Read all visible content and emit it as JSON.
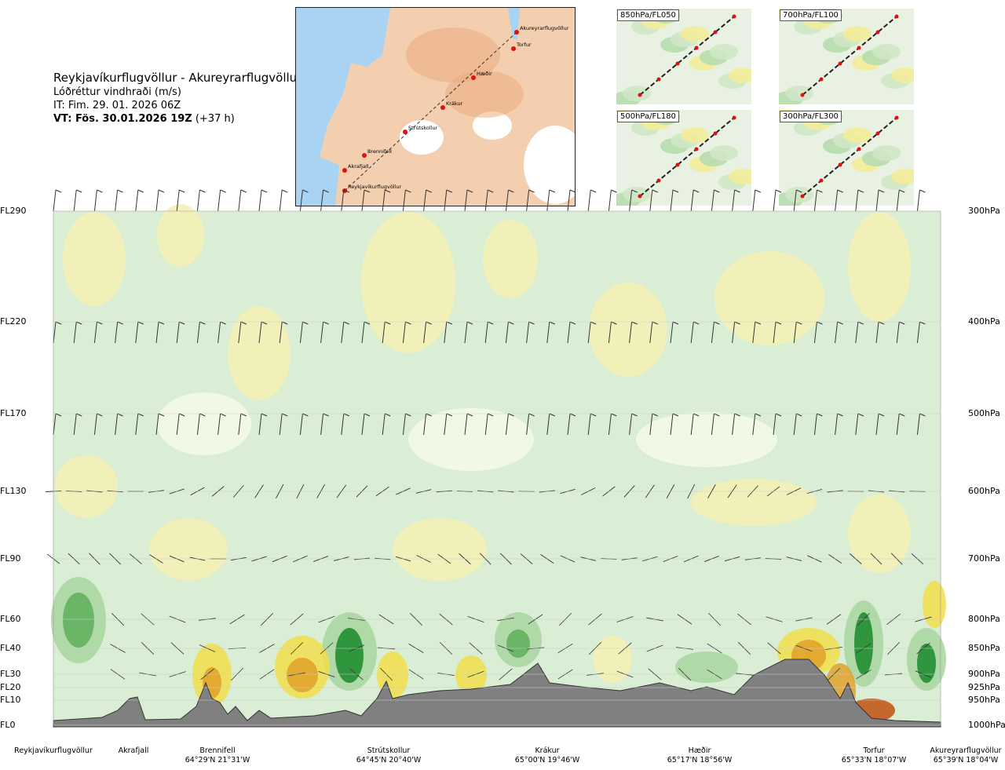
{
  "header": {
    "route": "Reykjavíkurflugvöllur - Akureyrarflugvöllur",
    "parameter": "Lóðréttur vindhraði (m/s)",
    "issue_time": "IT: Fim. 29. 01. 2026 06Z",
    "valid_time": "VT: Fös. 30.01.2026 19Z",
    "lead": "(+37 h)"
  },
  "map": {
    "stations": [
      "Akureyrarflugvöllur",
      "Torfur",
      "Hæðir",
      "Krákur",
      "Strútskollur",
      "Brennifell",
      "Akrafjall",
      "Reykjavíkurflugvöllur"
    ]
  },
  "thumbnails": [
    {
      "label": "850hPa/FL050"
    },
    {
      "label": "700hPa/FL100"
    },
    {
      "label": "500hPa/FL180"
    },
    {
      "label": "300hPa/FL300"
    }
  ],
  "chart_data": {
    "type": "heatmap",
    "title": "Lóðréttur vindhraði (m/s)",
    "y_levels": [
      {
        "fl": "FL290",
        "hpa": "300hPa"
      },
      {
        "fl": "FL220",
        "hpa": "400hPa"
      },
      {
        "fl": "FL170",
        "hpa": "500hPa"
      },
      {
        "fl": "FL130",
        "hpa": "600hPa"
      },
      {
        "fl": "FL90",
        "hpa": "700hPa"
      },
      {
        "fl": "FL60",
        "hpa": "800hPa"
      },
      {
        "fl": "FL40",
        "hpa": "850hPa"
      },
      {
        "fl": "FL30",
        "hpa": "900hPa"
      },
      {
        "fl": "FL20",
        "hpa": "925hPa"
      },
      {
        "fl": "FL10",
        "hpa": "950hPa"
      },
      {
        "fl": "FL0",
        "hpa": "1000hPa"
      }
    ],
    "x_locations": [
      {
        "name": "Reykjavíkurflugvöllur",
        "coord": ""
      },
      {
        "name": "Akrafjall",
        "coord": ""
      },
      {
        "name": "Brennifell",
        "coord": "64°29'N 21°31'W"
      },
      {
        "name": "Strútskollur",
        "coord": "64°45'N 20°40'W"
      },
      {
        "name": "Krákur",
        "coord": "65°00'N 19°46'W"
      },
      {
        "name": "Hæðir",
        "coord": "65°17'N 18°56'W"
      },
      {
        "name": "Torfur",
        "coord": "65°33'N 18°07'W"
      },
      {
        "name": "Akureyrarflugvöllur",
        "coord": "65°39'N 18°04'W"
      }
    ],
    "colors": {
      "neg_weak": "#d7ecd2",
      "neg_mid": "#a8d5a0",
      "neg_strong": "#5fae5c",
      "neg_max": "#1a8a2a",
      "pos_weak": "#f5f0b3",
      "pos_mid": "#f0de4a",
      "pos_strong": "#e0a02a",
      "pos_max": "#c05010",
      "terrain": "#808080"
    },
    "series": []
  }
}
